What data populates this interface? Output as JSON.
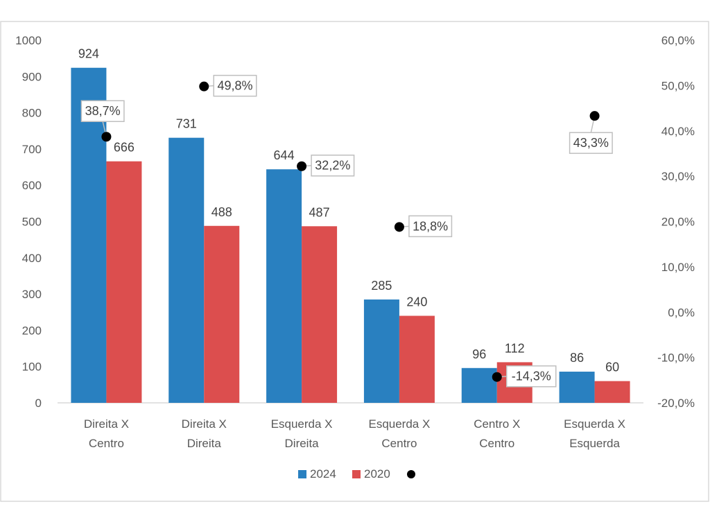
{
  "chart_data": {
    "type": "bar",
    "categories": [
      [
        "Direita X",
        "Centro"
      ],
      [
        "Direita X",
        "Direita"
      ],
      [
        "Esquerda X",
        "Direita"
      ],
      [
        "Esquerda X",
        "Centro"
      ],
      [
        "Centro X",
        "Centro"
      ],
      [
        "Esquerda X",
        "Esquerda"
      ]
    ],
    "series": [
      {
        "name": "2024",
        "color": "#2980c0",
        "values": [
          924,
          731,
          644,
          285,
          96,
          86
        ],
        "labels": [
          "924",
          "731",
          "644",
          "285",
          "96",
          "86"
        ]
      },
      {
        "name": "2020",
        "color": "#dc4e4e",
        "values": [
          666,
          488,
          487,
          240,
          112,
          60
        ],
        "labels": [
          "666",
          "488",
          "487",
          "240",
          "112",
          "60"
        ]
      }
    ],
    "change_series": {
      "name": "",
      "color": "#000000",
      "values": [
        38.7,
        49.8,
        32.2,
        18.8,
        -14.3,
        43.3
      ],
      "labels": [
        "38,7%",
        "49,8%",
        "32,2%",
        "18,8%",
        "-14,3%",
        "43,3%"
      ]
    },
    "y_left": {
      "min": 0,
      "max": 1000,
      "ticks": [
        "0",
        "100",
        "200",
        "300",
        "400",
        "500",
        "600",
        "700",
        "800",
        "900",
        "1000"
      ]
    },
    "y_right": {
      "min": -20,
      "max": 60,
      "ticks": [
        "-20,0%",
        "-10,0%",
        "0,0%",
        "10,0%",
        "20,0%",
        "30,0%",
        "40,0%",
        "50,0%",
        "60,0%"
      ]
    },
    "legend": {
      "position": "bottom",
      "entries": [
        "2024",
        "2020",
        ""
      ]
    },
    "grid": false
  }
}
